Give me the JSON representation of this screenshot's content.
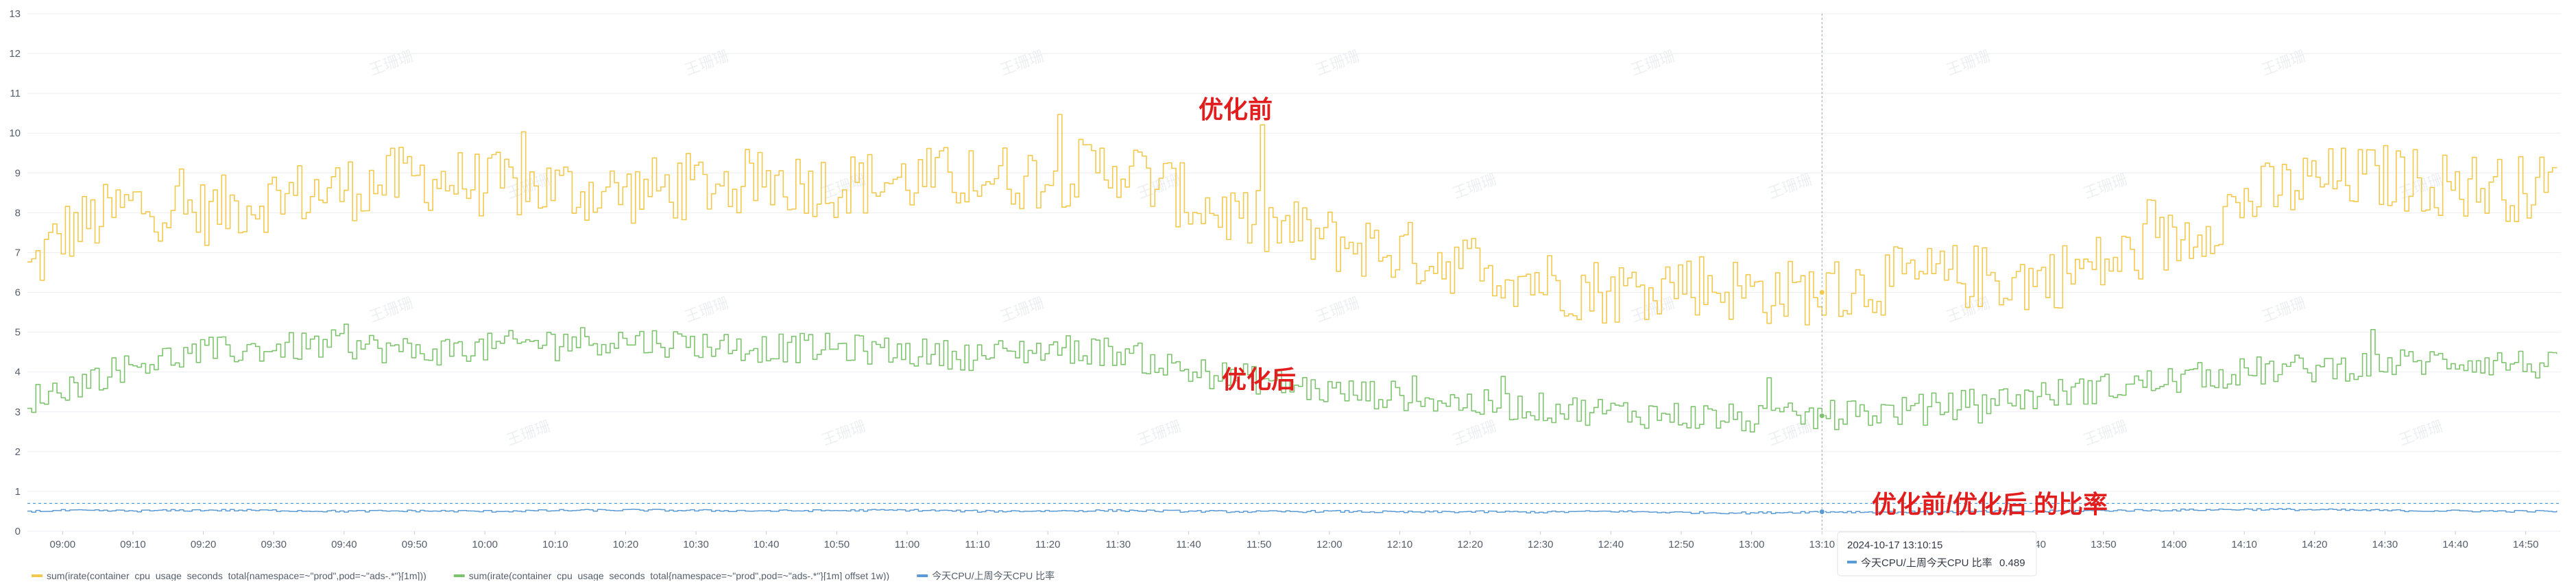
{
  "watermark": "王珊珊",
  "annotations": {
    "before": "优化前",
    "after": "优化后",
    "ratio": "优化前/优化后 的比率"
  },
  "tooltip": {
    "time": "2024-10-17 13:10:15",
    "series": "今天CPU/上周今天CPU 比率",
    "value": "0.489"
  },
  "legend": [
    {
      "label": "sum(irate(container_cpu_usage_seconds_total{namespace=~\"prod\",pod=~\"ads-.*\"}[1m]))",
      "color": "#f2c94c"
    },
    {
      "label": "sum(irate(container_cpu_usage_seconds_total{namespace=~\"prod\",pod=~\"ads-.*\"}[1m] offset 1w))",
      "color": "#7ec46f"
    },
    {
      "label": "今天CPU/上周今天CPU 比率",
      "color": "#5b9bd5"
    }
  ],
  "colors": {
    "before": "#f2c94c",
    "after": "#7ec46f",
    "ratio": "#5b9bd5",
    "grid": "#eceef1",
    "crosshair": "#9aa3ad"
  },
  "chart_data": {
    "type": "line",
    "x_start": "08:55",
    "x_end": "14:55",
    "x_ticks": [
      "09:00",
      "09:10",
      "09:20",
      "09:30",
      "09:40",
      "09:50",
      "10:00",
      "10:10",
      "10:20",
      "10:30",
      "10:40",
      "10:50",
      "11:00",
      "11:10",
      "11:20",
      "11:30",
      "11:40",
      "11:50",
      "12:00",
      "12:10",
      "12:20",
      "12:30",
      "12:40",
      "12:50",
      "13:00",
      "13:10",
      "13:20",
      "13:30",
      "13:40",
      "13:50",
      "14:00",
      "14:10",
      "14:20",
      "14:30",
      "14:40",
      "14:50"
    ],
    "y_ticks": [
      0,
      1,
      2,
      3,
      4,
      5,
      6,
      7,
      8,
      9,
      10,
      11,
      12,
      13
    ],
    "ylim": [
      0,
      13
    ],
    "threshold": 0.7,
    "crosshair_x": "13:10",
    "grid": true,
    "legend_position": "bottom-left",
    "series": [
      {
        "key": "before",
        "x": [
          "08:55",
          "09:00",
          "09:10",
          "09:20",
          "09:30",
          "09:40",
          "09:50",
          "10:00",
          "10:10",
          "10:20",
          "10:30",
          "10:40",
          "10:50",
          "11:00",
          "11:10",
          "11:20",
          "11:30",
          "11:40",
          "11:50",
          "12:00",
          "12:10",
          "12:20",
          "12:30",
          "12:40",
          "12:50",
          "13:00",
          "13:10",
          "13:20",
          "13:30",
          "13:40",
          "13:50",
          "14:00",
          "14:10",
          "14:20",
          "14:30",
          "14:40",
          "14:50",
          "14:55"
        ],
        "values": [
          6.5,
          7.5,
          8.2,
          8.0,
          8.4,
          8.6,
          8.9,
          8.7,
          8.6,
          8.5,
          8.7,
          8.8,
          8.7,
          8.8,
          8.9,
          8.9,
          9.2,
          8.3,
          7.7,
          7.3,
          7.0,
          6.7,
          6.3,
          6.0,
          6.3,
          6.0,
          6.0,
          6.3,
          6.4,
          6.3,
          6.7,
          7.3,
          8.3,
          8.8,
          8.9,
          8.7,
          8.6,
          8.7
        ]
      },
      {
        "key": "after",
        "x": [
          "08:55",
          "09:00",
          "09:10",
          "09:20",
          "09:30",
          "09:40",
          "09:50",
          "10:00",
          "10:10",
          "10:20",
          "10:30",
          "10:40",
          "10:50",
          "11:00",
          "11:10",
          "11:20",
          "11:30",
          "11:40",
          "11:50",
          "12:00",
          "12:10",
          "12:20",
          "12:30",
          "12:40",
          "12:50",
          "13:00",
          "13:10",
          "13:20",
          "13:30",
          "13:40",
          "13:50",
          "14:00",
          "14:10",
          "14:20",
          "14:30",
          "14:40",
          "14:50",
          "14:55"
        ],
        "values": [
          3.3,
          3.6,
          4.2,
          4.5,
          4.6,
          4.7,
          4.5,
          4.6,
          4.8,
          4.8,
          4.7,
          4.6,
          4.6,
          4.5,
          4.4,
          4.6,
          4.5,
          4.0,
          3.8,
          3.5,
          3.4,
          3.2,
          3.1,
          3.0,
          2.9,
          2.8,
          2.9,
          3.0,
          3.2,
          3.4,
          3.6,
          3.8,
          4.0,
          4.1,
          4.2,
          4.3,
          4.2,
          4.1
        ]
      },
      {
        "key": "ratio",
        "x": [
          "08:55",
          "09:00",
          "09:10",
          "09:20",
          "09:30",
          "09:40",
          "09:50",
          "10:00",
          "10:10",
          "10:20",
          "10:30",
          "10:40",
          "10:50",
          "11:00",
          "11:10",
          "11:20",
          "11:30",
          "11:40",
          "11:50",
          "12:00",
          "12:10",
          "12:20",
          "12:30",
          "12:40",
          "12:50",
          "13:00",
          "13:10",
          "13:20",
          "13:30",
          "13:40",
          "13:50",
          "14:00",
          "14:10",
          "14:20",
          "14:30",
          "14:40",
          "14:50",
          "14:55"
        ],
        "values": [
          0.5,
          0.52,
          0.51,
          0.53,
          0.52,
          0.5,
          0.51,
          0.5,
          0.52,
          0.53,
          0.52,
          0.51,
          0.52,
          0.53,
          0.5,
          0.51,
          0.52,
          0.5,
          0.49,
          0.5,
          0.48,
          0.49,
          0.48,
          0.5,
          0.47,
          0.46,
          0.489,
          0.48,
          0.49,
          0.5,
          0.52,
          0.53,
          0.55,
          0.54,
          0.52,
          0.51,
          0.5,
          0.5
        ]
      }
    ]
  }
}
